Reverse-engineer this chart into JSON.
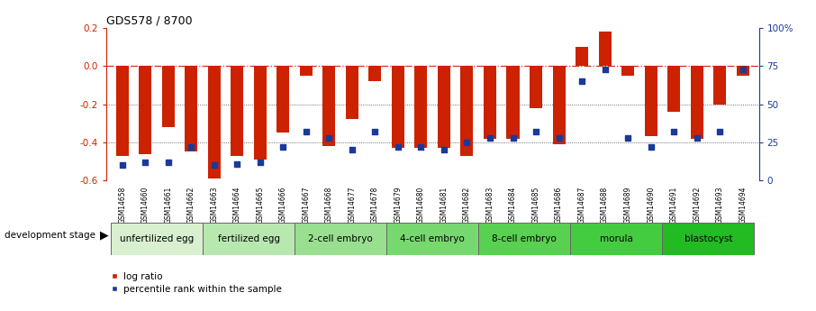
{
  "title": "GDS578 / 8700",
  "samples": [
    "GSM14658",
    "GSM14660",
    "GSM14661",
    "GSM14662",
    "GSM14663",
    "GSM14664",
    "GSM14665",
    "GSM14666",
    "GSM14667",
    "GSM14668",
    "GSM14677",
    "GSM14678",
    "GSM14679",
    "GSM14680",
    "GSM14681",
    "GSM14682",
    "GSM14683",
    "GSM14684",
    "GSM14685",
    "GSM14686",
    "GSM14687",
    "GSM14688",
    "GSM14689",
    "GSM14690",
    "GSM14691",
    "GSM14692",
    "GSM14693",
    "GSM14694"
  ],
  "log_ratio": [
    -0.47,
    -0.46,
    -0.32,
    -0.45,
    -0.59,
    -0.47,
    -0.49,
    -0.35,
    -0.05,
    -0.42,
    -0.28,
    -0.08,
    -0.43,
    -0.43,
    -0.43,
    -0.47,
    -0.38,
    -0.38,
    -0.22,
    -0.41,
    0.1,
    0.18,
    -0.05,
    -0.37,
    -0.24,
    -0.38,
    -0.2,
    -0.05
  ],
  "percentile": [
    10,
    12,
    12,
    22,
    10,
    11,
    12,
    22,
    32,
    28,
    20,
    32,
    22,
    22,
    20,
    25,
    28,
    28,
    32,
    28,
    65,
    73,
    28,
    22,
    32,
    28,
    32,
    73
  ],
  "stages": [
    {
      "label": "unfertilized egg",
      "start": 0,
      "end": 4,
      "color": "#d8f0d0"
    },
    {
      "label": "fertilized egg",
      "start": 4,
      "end": 8,
      "color": "#b8e8b0"
    },
    {
      "label": "2-cell embryo",
      "start": 8,
      "end": 12,
      "color": "#98e090"
    },
    {
      "label": "4-cell embryo",
      "start": 12,
      "end": 16,
      "color": "#78d870"
    },
    {
      "label": "8-cell embryo",
      "start": 16,
      "end": 20,
      "color": "#58d050"
    },
    {
      "label": "morula",
      "start": 20,
      "end": 24,
      "color": "#44cc40"
    },
    {
      "label": "blastocyst",
      "start": 24,
      "end": 28,
      "color": "#22bb22"
    }
  ],
  "bar_color": "#cc2200",
  "dot_color": "#1a3a9a",
  "ylim_left": [
    -0.6,
    0.2
  ],
  "ylim_right": [
    0,
    100
  ],
  "y_ticks_left": [
    -0.6,
    -0.4,
    -0.2,
    0.0,
    0.2
  ],
  "y_ticks_right": [
    0,
    25,
    50,
    75,
    100
  ],
  "y_tick_labels_right": [
    "0",
    "25",
    "50",
    "75",
    "100%"
  ],
  "hline_zero_color": "#cc2200",
  "hline_grid_color": "#444444",
  "background_color": "#ffffff",
  "stage_header_color": "#c0c0c0"
}
